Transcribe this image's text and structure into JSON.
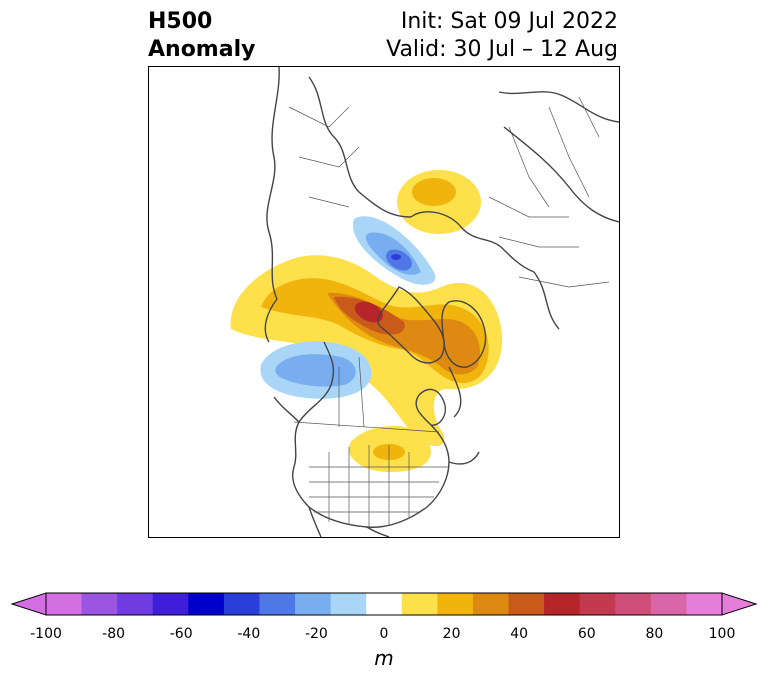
{
  "header": {
    "title_line1": "H500",
    "title_line2": "Anomaly",
    "init_label": "Init: Sat 09 Jul 2022",
    "valid_label": "Valid: 30 Jul – 12 Aug"
  },
  "colorbar": {
    "unit": "m",
    "ticks": [
      "-100",
      "-80",
      "-60",
      "-40",
      "-20",
      "0",
      "20",
      "40",
      "60",
      "80",
      "100"
    ],
    "bins": [
      {
        "range": "-100 to -90",
        "color": "#d46ee3"
      },
      {
        "range": "-90 to -80",
        "color": "#9b55e0"
      },
      {
        "range": "-80 to -70",
        "color": "#6e3ce0"
      },
      {
        "range": "-70 to -60",
        "color": "#3e1edb"
      },
      {
        "range": "-60 to -50",
        "color": "#0000cc"
      },
      {
        "range": "-50 to -40",
        "color": "#2a3fd9"
      },
      {
        "range": "-40 to -30",
        "color": "#4f78e6"
      },
      {
        "range": "-30 to -20",
        "color": "#78aef0"
      },
      {
        "range": "-20 to -10",
        "color": "#a9d6f7"
      },
      {
        "range": "-10 to 10",
        "color": "#ffffff"
      },
      {
        "range": "10 to 20",
        "color": "#fde04a"
      },
      {
        "range": "20 to 30",
        "color": "#f1b40c"
      },
      {
        "range": "30 to 40",
        "color": "#de8a12"
      },
      {
        "range": "40 to 50",
        "color": "#c85a1a"
      },
      {
        "range": "50 to 60",
        "color": "#b5252a"
      },
      {
        "range": "60 to 70",
        "color": "#c3394f"
      },
      {
        "range": "70 to 80",
        "color": "#cf4e7a"
      },
      {
        "range": "80 to 90",
        "color": "#d966a8"
      },
      {
        "range": "90 to 100",
        "color": "#e57ed9"
      }
    ],
    "under_color": "#d46ee3",
    "over_color": "#e57ed9"
  },
  "map": {
    "projection": "north-polar-stereographic",
    "features": [
      "coastlines",
      "country-borders",
      "us-state-borders"
    ],
    "anomalies": [
      {
        "name": "ridge-north-atlantic-greenland",
        "sign": "positive",
        "peak_m": 50
      },
      {
        "name": "ridge-hudson-bay",
        "sign": "positive",
        "peak_m": 40
      },
      {
        "name": "ridge-western-russia",
        "sign": "positive",
        "peak_m": 30
      },
      {
        "name": "ridge-central-us",
        "sign": "positive",
        "peak_m": 20
      },
      {
        "name": "trough-gulf-of-alaska",
        "sign": "negative",
        "peak_m": -30
      },
      {
        "name": "trough-barents-kara-sea",
        "sign": "negative",
        "peak_m": -50
      }
    ]
  }
}
